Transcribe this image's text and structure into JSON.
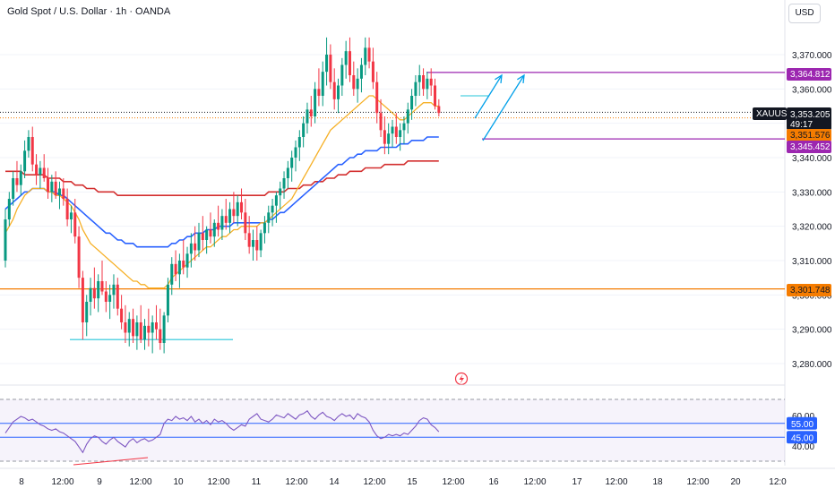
{
  "header": {
    "title": "Gold Spot / U.S. Dollar · 1h · OANDA",
    "currency_button": "USD"
  },
  "colors": {
    "up": "#089981",
    "down": "#f23645",
    "ma_fast": "#f6b026",
    "ma_mid": "#2962ff",
    "ma_slow": "#d32f2f",
    "level_orange": "#f57c00",
    "level_purple": "#9c27b0",
    "arrow": "#00a0e9",
    "support": "#26c6da",
    "rsi": "#7e57c2"
  },
  "price_axis": {
    "ticks": [
      "3,370.000",
      "3,360.000",
      "3,350.000",
      "3,340.000",
      "3,330.000",
      "3,320.000",
      "3,310.000",
      "3,300.000",
      "3,290.000",
      "3,280.000"
    ],
    "tick_values": [
      3370,
      3360,
      3350,
      3340,
      3330,
      3320,
      3310,
      3300,
      3290,
      3280
    ]
  },
  "price_labels": {
    "resistance": "3,364.812",
    "symbol": "XAUUSD",
    "current": "3,353.205",
    "countdown": "49:17",
    "ma_value": "3,351.576",
    "support": "3,345.452",
    "lower_level": "3,301.748"
  },
  "time_axis": {
    "labels": [
      "8",
      "12:00",
      "9",
      "12:00",
      "10",
      "12:00",
      "11",
      "12:00",
      "14",
      "12:00",
      "15",
      "12:00",
      "16",
      "12:00",
      "17",
      "12:00",
      "18",
      "12:00",
      "20",
      "12:0"
    ]
  },
  "rsi_panel": {
    "ticks": [
      "60.00",
      "40.00"
    ],
    "level_high": "55.00",
    "level_low": "45.00"
  },
  "chart_data": {
    "type": "candlestick",
    "symbol": "XAUUSD",
    "timeframe": "1h",
    "ylim": [
      3275,
      3378
    ],
    "x_count": 135,
    "candles": [
      [
        3310,
        3325,
        3308,
        3322
      ],
      [
        3322,
        3330,
        3320,
        3328
      ],
      [
        3328,
        3336,
        3326,
        3334
      ],
      [
        3334,
        3339,
        3330,
        3332
      ],
      [
        3332,
        3338,
        3329,
        3336
      ],
      [
        3336,
        3345,
        3334,
        3342
      ],
      [
        3342,
        3348,
        3340,
        3346
      ],
      [
        3346,
        3349,
        3336,
        3338
      ],
      [
        3338,
        3341,
        3332,
        3335
      ],
      [
        3335,
        3339,
        3331,
        3337
      ],
      [
        3337,
        3341,
        3333,
        3334
      ],
      [
        3334,
        3337,
        3328,
        3330
      ],
      [
        3330,
        3335,
        3327,
        3333
      ],
      [
        3333,
        3336,
        3328,
        3329
      ],
      [
        3329,
        3333,
        3325,
        3331
      ],
      [
        3331,
        3334,
        3326,
        3328
      ],
      [
        3328,
        3331,
        3320,
        3322
      ],
      [
        3322,
        3326,
        3318,
        3324
      ],
      [
        3324,
        3328,
        3315,
        3317
      ],
      [
        3317,
        3320,
        3302,
        3305
      ],
      [
        3305,
        3307,
        3287,
        3292
      ],
      [
        3292,
        3300,
        3288,
        3298
      ],
      [
        3298,
        3305,
        3294,
        3302
      ],
      [
        3302,
        3308,
        3296,
        3299
      ],
      [
        3299,
        3306,
        3295,
        3304
      ],
      [
        3304,
        3310,
        3300,
        3301
      ],
      [
        3301,
        3304,
        3295,
        3298
      ],
      [
        3298,
        3303,
        3293,
        3300
      ],
      [
        3300,
        3306,
        3296,
        3303
      ],
      [
        3303,
        3305,
        3294,
        3296
      ],
      [
        3296,
        3300,
        3290,
        3292
      ],
      [
        3292,
        3297,
        3286,
        3289
      ],
      [
        3289,
        3295,
        3285,
        3293
      ],
      [
        3293,
        3296,
        3286,
        3288
      ],
      [
        3288,
        3294,
        3284,
        3292
      ],
      [
        3292,
        3297,
        3286,
        3287
      ],
      [
        3287,
        3293,
        3284,
        3291
      ],
      [
        3291,
        3296,
        3285,
        3289
      ],
      [
        3289,
        3294,
        3283,
        3292
      ],
      [
        3292,
        3297,
        3287,
        3290
      ],
      [
        3290,
        3296,
        3284,
        3286
      ],
      [
        3286,
        3295,
        3283,
        3294
      ],
      [
        3294,
        3305,
        3292,
        3303
      ],
      [
        3303,
        3311,
        3300,
        3309
      ],
      [
        3309,
        3313,
        3304,
        3306
      ],
      [
        3306,
        3312,
        3302,
        3310
      ],
      [
        3310,
        3316,
        3306,
        3308
      ],
      [
        3308,
        3314,
        3305,
        3312
      ],
      [
        3312,
        3318,
        3308,
        3315
      ],
      [
        3315,
        3320,
        3310,
        3313
      ],
      [
        3313,
        3321,
        3311,
        3318
      ],
      [
        3318,
        3323,
        3313,
        3316
      ],
      [
        3316,
        3320,
        3312,
        3319
      ],
      [
        3319,
        3324,
        3315,
        3317
      ],
      [
        3317,
        3322,
        3314,
        3321
      ],
      [
        3321,
        3326,
        3317,
        3319
      ],
      [
        3319,
        3325,
        3316,
        3323
      ],
      [
        3323,
        3328,
        3319,
        3321
      ],
      [
        3321,
        3327,
        3318,
        3325
      ],
      [
        3325,
        3330,
        3321,
        3323
      ],
      [
        3323,
        3329,
        3320,
        3327
      ],
      [
        3327,
        3331,
        3322,
        3324
      ],
      [
        3324,
        3328,
        3316,
        3318
      ],
      [
        3318,
        3323,
        3312,
        3314
      ],
      [
        3314,
        3319,
        3310,
        3316
      ],
      [
        3316,
        3320,
        3310,
        3313
      ],
      [
        3313,
        3319,
        3311,
        3318
      ],
      [
        3318,
        3323,
        3315,
        3321
      ],
      [
        3321,
        3326,
        3318,
        3324
      ],
      [
        3324,
        3328,
        3320,
        3326
      ],
      [
        3326,
        3330,
        3321,
        3329
      ],
      [
        3329,
        3333,
        3325,
        3331
      ],
      [
        3331,
        3336,
        3328,
        3334
      ],
      [
        3334,
        3339,
        3331,
        3337
      ],
      [
        3337,
        3342,
        3333,
        3340
      ],
      [
        3340,
        3345,
        3336,
        3343
      ],
      [
        3343,
        3348,
        3339,
        3346
      ],
      [
        3346,
        3352,
        3343,
        3350
      ],
      [
        3350,
        3356,
        3347,
        3354
      ],
      [
        3354,
        3358,
        3349,
        3352
      ],
      [
        3352,
        3362,
        3350,
        3360
      ],
      [
        3360,
        3366,
        3355,
        3358
      ],
      [
        3358,
        3368,
        3355,
        3365
      ],
      [
        3365,
        3375,
        3361,
        3370
      ],
      [
        3370,
        3373,
        3360,
        3362
      ],
      [
        3362,
        3366,
        3354,
        3357
      ],
      [
        3357,
        3363,
        3353,
        3361
      ],
      [
        3361,
        3369,
        3358,
        3367
      ],
      [
        3367,
        3374,
        3363,
        3371
      ],
      [
        3371,
        3375,
        3362,
        3364
      ],
      [
        3364,
        3368,
        3358,
        3360
      ],
      [
        3360,
        3366,
        3356,
        3363
      ],
      [
        3363,
        3369,
        3359,
        3367
      ],
      [
        3367,
        3375,
        3364,
        3372
      ],
      [
        3372,
        3375,
        3366,
        3368
      ],
      [
        3368,
        3372,
        3360,
        3362
      ],
      [
        3362,
        3365,
        3350,
        3353
      ],
      [
        3353,
        3357,
        3346,
        3348
      ],
      [
        3348,
        3352,
        3341,
        3344
      ],
      [
        3344,
        3350,
        3341,
        3347
      ],
      [
        3347,
        3351,
        3343,
        3349
      ],
      [
        3349,
        3353,
        3344,
        3346
      ],
      [
        3346,
        3350,
        3342,
        3348
      ],
      [
        3348,
        3352,
        3344,
        3350
      ],
      [
        3350,
        3356,
        3347,
        3354
      ],
      [
        3354,
        3360,
        3351,
        3358
      ],
      [
        3358,
        3364,
        3355,
        3362
      ],
      [
        3362,
        3367,
        3358,
        3364
      ],
      [
        3364,
        3366,
        3358,
        3360
      ],
      [
        3360,
        3365,
        3357,
        3363
      ],
      [
        3363,
        3366,
        3358,
        3361
      ],
      [
        3361,
        3363,
        3354,
        3355
      ],
      [
        3355,
        3357,
        3352,
        3353
      ]
    ],
    "ma_fast": [
      3318,
      3320,
      3322,
      3325,
      3327,
      3329,
      3330,
      3331,
      3331,
      3331,
      3331,
      3330,
      3330,
      3329,
      3329,
      3328,
      3327,
      3326,
      3324,
      3322,
      3319,
      3317,
      3315,
      3314,
      3313,
      3312,
      3311,
      3310,
      3309,
      3308,
      3307,
      3306,
      3305,
      3304,
      3304,
      3303,
      3303,
      3302,
      3302,
      3302,
      3302,
      3302,
      3303,
      3305,
      3306,
      3307,
      3308,
      3309,
      3310,
      3311,
      3312,
      3313,
      3314,
      3314,
      3315,
      3316,
      3317,
      3317,
      3318,
      3319,
      3319,
      3320,
      3320,
      3320,
      3320,
      3320,
      3321,
      3321,
      3322,
      3323,
      3324,
      3325,
      3326,
      3327,
      3328,
      3330,
      3332,
      3334,
      3336,
      3338,
      3340,
      3342,
      3344,
      3346,
      3348,
      3349,
      3350,
      3351,
      3352,
      3353,
      3354,
      3355,
      3356,
      3357,
      3358,
      3358,
      3357,
      3356,
      3355,
      3354,
      3353,
      3352,
      3351,
      3351,
      3352,
      3353,
      3354,
      3355,
      3356,
      3356,
      3356,
      3355,
      3355
    ],
    "ma_mid": [
      3325,
      3326,
      3327,
      3328,
      3329,
      3330,
      3330,
      3331,
      3331,
      3331,
      3331,
      3330,
      3330,
      3330,
      3329,
      3329,
      3328,
      3327,
      3326,
      3325,
      3324,
      3323,
      3322,
      3321,
      3320,
      3319,
      3318,
      3318,
      3317,
      3316,
      3316,
      3315,
      3315,
      3315,
      3314,
      3314,
      3314,
      3314,
      3314,
      3314,
      3314,
      3314,
      3314,
      3315,
      3315,
      3316,
      3316,
      3317,
      3317,
      3318,
      3318,
      3318,
      3319,
      3319,
      3319,
      3320,
      3320,
      3320,
      3320,
      3321,
      3321,
      3321,
      3321,
      3321,
      3321,
      3321,
      3321,
      3321,
      3322,
      3322,
      3323,
      3324,
      3324,
      3325,
      3326,
      3327,
      3328,
      3329,
      3330,
      3331,
      3332,
      3333,
      3334,
      3335,
      3336,
      3337,
      3338,
      3338,
      3339,
      3340,
      3340,
      3341,
      3341,
      3342,
      3342,
      3342,
      3342,
      3343,
      3343,
      3343,
      3343,
      3343,
      3344,
      3344,
      3344,
      3345,
      3345,
      3345,
      3345,
      3346,
      3346,
      3346,
      3346
    ],
    "ma_slow": [
      3336,
      3336,
      3336,
      3336,
      3336,
      3335,
      3335,
      3335,
      3335,
      3335,
      3335,
      3334,
      3334,
      3334,
      3334,
      3333,
      3333,
      3333,
      3332,
      3332,
      3332,
      3331,
      3331,
      3331,
      3330,
      3330,
      3330,
      3330,
      3330,
      3329,
      3329,
      3329,
      3329,
      3329,
      3329,
      3329,
      3329,
      3329,
      3329,
      3329,
      3329,
      3329,
      3329,
      3329,
      3329,
      3329,
      3329,
      3329,
      3329,
      3329,
      3329,
      3329,
      3329,
      3329,
      3329,
      3329,
      3329,
      3329,
      3329,
      3329,
      3329,
      3329,
      3329,
      3329,
      3329,
      3329,
      3329,
      3329,
      3330,
      3330,
      3330,
      3330,
      3330,
      3331,
      3331,
      3331,
      3331,
      3332,
      3332,
      3332,
      3333,
      3333,
      3333,
      3334,
      3334,
      3334,
      3335,
      3335,
      3335,
      3336,
      3336,
      3336,
      3336,
      3337,
      3337,
      3337,
      3337,
      3337,
      3338,
      3338,
      3338,
      3338,
      3338,
      3338,
      3339,
      3339,
      3339,
      3339,
      3339,
      3339,
      3339,
      3339,
      3339
    ],
    "levels": {
      "resistance": 3364.812,
      "current": 3353.205,
      "ma_value": 3351.576,
      "support": 3345.452,
      "lower_level": 3301.748,
      "support_zone_low": 3287
    },
    "rsi": [
      48,
      52,
      56,
      58,
      60,
      59,
      57,
      58,
      56,
      54,
      53,
      51,
      50,
      51,
      49,
      48,
      46,
      44,
      42,
      38,
      34,
      40,
      44,
      46,
      45,
      42,
      40,
      43,
      45,
      42,
      40,
      38,
      42,
      44,
      41,
      43,
      44,
      42,
      43,
      45,
      47,
      55,
      58,
      57,
      60,
      58,
      59,
      57,
      60,
      56,
      58,
      55,
      57,
      54,
      58,
      56,
      57,
      55,
      52,
      50,
      52,
      54,
      53,
      58,
      60,
      62,
      58,
      57,
      56,
      58,
      61,
      60,
      59,
      62,
      60,
      58,
      61,
      62,
      64,
      60,
      58,
      61,
      63,
      60,
      59,
      57,
      60,
      62,
      60,
      61,
      58,
      62,
      60,
      59,
      56,
      50,
      46,
      44,
      45,
      47,
      46,
      47,
      46,
      48,
      47,
      50,
      53,
      57,
      59,
      58,
      54,
      52,
      49
    ],
    "rsi_levels": [
      55,
      45
    ]
  }
}
